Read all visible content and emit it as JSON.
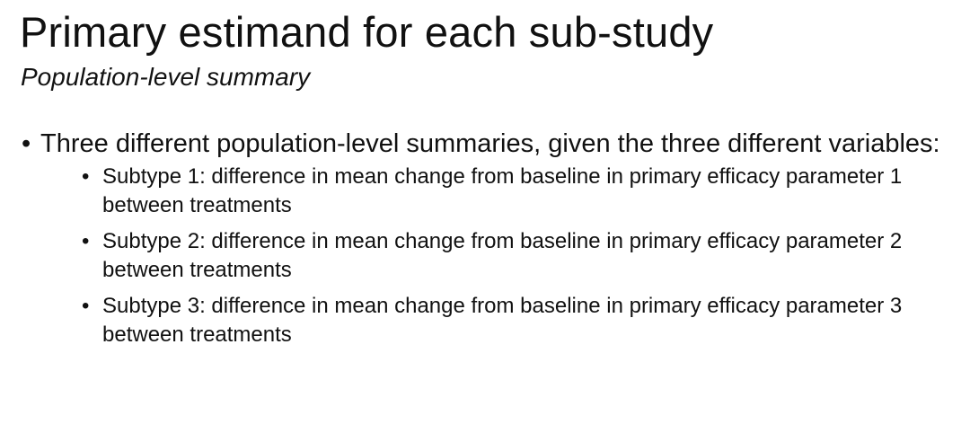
{
  "slide": {
    "title": "Primary estimand for each sub-study",
    "subtitle": "Population-level summary",
    "bullet_symbol": "•",
    "main_bullet": "Three different population-level summaries, given the three different variables:",
    "sub_bullets": [
      "Subtype 1: difference in mean change from baseline in primary efficacy parameter 1 between treatments",
      "Subtype 2: difference in mean change from baseline in primary efficacy parameter 2 between treatments",
      "Subtype 3: difference in mean change from baseline in primary efficacy parameter 3 between treatments"
    ]
  }
}
